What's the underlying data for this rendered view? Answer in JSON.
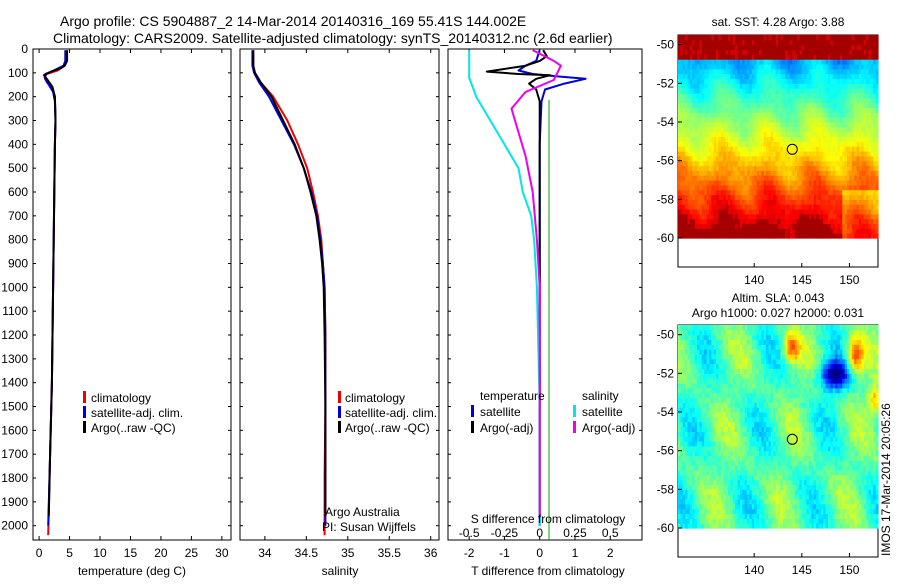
{
  "title": {
    "line1": "Argo profile: CS 5904887_2 14-Mar-2014 20140316_169 55.41S 144.002E",
    "line2": "Climatology: CARS2009. Satellite-adjusted climatology: synTS_20140312.nc (2.6d earlier)"
  },
  "credits": {
    "org": "Argo Australia",
    "pi": "PI: Susan Wijffels"
  },
  "imos_stamp": "IMOS 17-Mar-2014 20:05:26",
  "colors": {
    "climatology": "#ee0000",
    "satellite": "#0000dd",
    "argo": "#000000",
    "salinity_satellite": "#00e5ee",
    "salinity_argo": "#ee00ee",
    "zero_line": "#00aa00"
  },
  "chart_data": [
    {
      "id": "temperature",
      "type": "line",
      "title": "",
      "xlabel": "temperature (deg C)",
      "ylabel": "",
      "xlim": [
        -1,
        31.5
      ],
      "ylim": [
        2060,
        0
      ],
      "xticks": [
        "0",
        "5",
        "10",
        "15",
        "20",
        "25",
        "30"
      ],
      "xtick_values": [
        0,
        5,
        10,
        15,
        20,
        25,
        30
      ],
      "yticks": [
        "0",
        "100",
        "200",
        "300",
        "400",
        "500",
        "600",
        "700",
        "800",
        "900",
        "1000",
        "1100",
        "1200",
        "1300",
        "1400",
        "1500",
        "1600",
        "1700",
        "1800",
        "1900",
        "2000"
      ],
      "ytick_values": [
        0,
        100,
        200,
        300,
        400,
        500,
        600,
        700,
        800,
        900,
        1000,
        1100,
        1200,
        1300,
        1400,
        1500,
        1600,
        1700,
        1800,
        1900,
        2000
      ],
      "legend": [
        "climatology",
        "satellite-adj. clim.",
        "Argo(..raw -QC)"
      ],
      "series": [
        {
          "name": "climatology",
          "color": "#ee0000",
          "points": [
            [
              4.5,
              5
            ],
            [
              4.5,
              50
            ],
            [
              4.2,
              70
            ],
            [
              3.0,
              90
            ],
            [
              1.2,
              105
            ],
            [
              0.9,
              120
            ],
            [
              1.3,
              140
            ],
            [
              2.2,
              165
            ],
            [
              2.6,
              200
            ],
            [
              2.7,
              300
            ],
            [
              2.6,
              400
            ],
            [
              2.5,
              600
            ],
            [
              2.4,
              800
            ],
            [
              2.3,
              1000
            ],
            [
              2.1,
              1400
            ],
            [
              1.8,
              1700
            ],
            [
              1.5,
              2040
            ]
          ]
        },
        {
          "name": "satellite-adj. clim.",
          "color": "#0000dd",
          "points": [
            [
              4.3,
              5
            ],
            [
              4.3,
              50
            ],
            [
              4.0,
              70
            ],
            [
              2.4,
              90
            ],
            [
              1.0,
              105
            ],
            [
              1.0,
              125
            ],
            [
              1.6,
              150
            ],
            [
              2.3,
              180
            ],
            [
              2.6,
              220
            ],
            [
              2.7,
              300
            ],
            [
              2.6,
              400
            ],
            [
              2.5,
              600
            ],
            [
              2.4,
              800
            ],
            [
              2.3,
              1000
            ],
            [
              2.1,
              1400
            ],
            [
              1.8,
              1700
            ],
            [
              1.5,
              2000
            ]
          ]
        },
        {
          "name": "Argo(..raw -QC)",
          "color": "#000000",
          "points": [
            [
              4.6,
              5
            ],
            [
              4.6,
              50
            ],
            [
              4.2,
              70
            ],
            [
              3.6,
              80
            ],
            [
              2.0,
              95
            ],
            [
              0.8,
              110
            ],
            [
              1.4,
              130
            ],
            [
              2.2,
              160
            ],
            [
              2.6,
              200
            ],
            [
              2.7,
              300
            ],
            [
              2.6,
              400
            ],
            [
              2.5,
              600
            ],
            [
              2.4,
              800
            ],
            [
              2.3,
              1000
            ],
            [
              2.1,
              1400
            ],
            [
              1.8,
              1700
            ],
            [
              1.6,
              1960
            ]
          ]
        }
      ]
    },
    {
      "id": "salinity",
      "type": "line",
      "title": "",
      "xlabel": "salinity",
      "ylabel": "",
      "xlim": [
        33.7,
        36.1
      ],
      "ylim": [
        2060,
        0
      ],
      "xticks": [
        "34",
        "34.5",
        "35",
        "35.5",
        "36"
      ],
      "xtick_values": [
        34,
        34.5,
        35,
        35.5,
        36
      ],
      "legend": [
        "climatology",
        "satellite-adj. clim.",
        "Argo(..raw -QC)"
      ],
      "series": [
        {
          "name": "climatology",
          "color": "#ee0000",
          "points": [
            [
              33.86,
              5
            ],
            [
              33.86,
              70
            ],
            [
              33.88,
              100
            ],
            [
              33.95,
              140
            ],
            [
              34.1,
              200
            ],
            [
              34.27,
              300
            ],
            [
              34.4,
              400
            ],
            [
              34.51,
              500
            ],
            [
              34.58,
              600
            ],
            [
              34.64,
              700
            ],
            [
              34.68,
              800
            ],
            [
              34.7,
              900
            ],
            [
              34.72,
              1000
            ],
            [
              34.73,
              1200
            ],
            [
              34.73,
              1500
            ],
            [
              34.72,
              1800
            ],
            [
              34.72,
              2040
            ]
          ]
        },
        {
          "name": "satellite-adj. clim.",
          "color": "#0000dd",
          "points": [
            [
              33.85,
              5
            ],
            [
              33.85,
              70
            ],
            [
              33.87,
              100
            ],
            [
              33.93,
              140
            ],
            [
              34.05,
              200
            ],
            [
              34.2,
              300
            ],
            [
              34.35,
              400
            ],
            [
              34.47,
              500
            ],
            [
              34.56,
              600
            ],
            [
              34.63,
              700
            ],
            [
              34.67,
              800
            ],
            [
              34.7,
              900
            ],
            [
              34.72,
              1000
            ],
            [
              34.73,
              1200
            ],
            [
              34.73,
              1500
            ],
            [
              34.73,
              1800
            ],
            [
              34.73,
              2000
            ]
          ]
        },
        {
          "name": "Argo(..raw -QC)",
          "color": "#000000",
          "points": [
            [
              33.86,
              5
            ],
            [
              33.86,
              70
            ],
            [
              33.88,
              100
            ],
            [
              33.95,
              140
            ],
            [
              34.08,
              200
            ],
            [
              34.22,
              300
            ],
            [
              34.36,
              400
            ],
            [
              34.47,
              500
            ],
            [
              34.55,
              600
            ],
            [
              34.62,
              700
            ],
            [
              34.66,
              800
            ],
            [
              34.69,
              900
            ],
            [
              34.71,
              1000
            ],
            [
              34.72,
              1200
            ],
            [
              34.73,
              1500
            ],
            [
              34.73,
              1800
            ],
            [
              34.73,
              1960
            ]
          ]
        }
      ]
    },
    {
      "id": "difference",
      "type": "line",
      "title": "S difference from climatology",
      "xlabel": "T difference from climatology",
      "ylabel": "",
      "xlim": [
        -2.6,
        2.9
      ],
      "ylim": [
        2060,
        0
      ],
      "xticks": [
        "-2",
        "-1",
        "0",
        "1",
        "2"
      ],
      "xtick_values": [
        -2,
        -1,
        0,
        1,
        2
      ],
      "s_xticks": [
        "-0.5",
        "-0.25",
        "0",
        "0.25",
        "0.5"
      ],
      "s_xtick_values": [
        -0.5,
        -0.25,
        0,
        0.25,
        0.5
      ],
      "legend_temperature": {
        "title": "temperature",
        "items": [
          "satellite",
          "Argo(-adj)"
        ]
      },
      "legend_salinity": {
        "title": "salinity",
        "items": [
          "satellite",
          "Argo(-adj)"
        ]
      },
      "series": [
        {
          "name": "temperature satellite",
          "color": "#0000dd",
          "points": [
            [
              0,
              5
            ],
            [
              -0.1,
              50
            ],
            [
              -0.4,
              70
            ],
            [
              -0.6,
              90
            ],
            [
              -0.2,
              105
            ],
            [
              0.5,
              115
            ],
            [
              1.3,
              125
            ],
            [
              0.7,
              145
            ],
            [
              0.15,
              170
            ],
            [
              0.05,
              220
            ],
            [
              0,
              400
            ],
            [
              0,
              1000
            ],
            [
              0,
              2000
            ]
          ]
        },
        {
          "name": "temperature Argo(-adj)",
          "color": "#000000",
          "points": [
            [
              0.1,
              5
            ],
            [
              0.2,
              30
            ],
            [
              0,
              50
            ],
            [
              -0.4,
              70
            ],
            [
              -1.5,
              95
            ],
            [
              -0.6,
              105
            ],
            [
              0.3,
              110
            ],
            [
              -0.1,
              125
            ],
            [
              -0.3,
              145
            ],
            [
              -0.1,
              170
            ],
            [
              0,
              220
            ],
            [
              0,
              400
            ],
            [
              0,
              1000
            ],
            [
              0,
              1960
            ]
          ]
        },
        {
          "name": "salinity satellite",
          "color": "#00e5ee",
          "points": [
            [
              -0.5,
              5
            ],
            [
              -0.5,
              120
            ],
            [
              -0.45,
              200
            ],
            [
              -0.35,
              300
            ],
            [
              -0.25,
              400
            ],
            [
              -0.15,
              500
            ],
            [
              -0.12,
              600
            ],
            [
              -0.06,
              700
            ],
            [
              -0.04,
              800
            ],
            [
              -0.02,
              1000
            ],
            [
              0,
              1500
            ],
            [
              0,
              2000
            ]
          ]
        },
        {
          "name": "salinity Argo(-adj)",
          "color": "#ee00ee",
          "points": [
            [
              -0.05,
              5
            ],
            [
              0.1,
              50
            ],
            [
              0.15,
              70
            ],
            [
              0.1,
              130
            ],
            [
              -0.1,
              180
            ],
            [
              -0.2,
              250
            ],
            [
              -0.15,
              350
            ],
            [
              -0.1,
              450
            ],
            [
              -0.05,
              600
            ],
            [
              -0.02,
              800
            ],
            [
              0,
              1000
            ],
            [
              0,
              1960
            ]
          ]
        }
      ]
    },
    {
      "id": "sst-map",
      "type": "heatmap",
      "title": "sat. SST: 4.28 Argo: 3.88",
      "xlabel": "",
      "ylabel": "",
      "xlim": [
        132,
        153
      ],
      "ylim": [
        -61.5,
        -49.5
      ],
      "xticks": [
        "140",
        "145",
        "150"
      ],
      "xtick_values": [
        140,
        145,
        150
      ],
      "yticks": [
        "-50",
        "-52",
        "-54",
        "-56",
        "-58",
        "-60"
      ],
      "ytick_values": [
        -50,
        -52,
        -54,
        -56,
        -58,
        -60
      ],
      "data_extent_lat": [
        -60,
        -49.5
      ],
      "marker": {
        "lon": 144.0,
        "lat": -55.41
      }
    },
    {
      "id": "sla-map",
      "type": "heatmap",
      "title": "Altim. SLA: 0.043",
      "subtitle": "Argo h1000: 0.027 h2000: 0.031",
      "xlabel": "",
      "ylabel": "",
      "xlim": [
        132,
        153
      ],
      "ylim": [
        -61.5,
        -49.5
      ],
      "xticks": [
        "140",
        "145",
        "150"
      ],
      "xtick_values": [
        140,
        145,
        150
      ],
      "yticks": [
        "-50",
        "-52",
        "-54",
        "-56",
        "-58",
        "-60"
      ],
      "ytick_values": [
        -50,
        -52,
        -54,
        -56,
        -58,
        -60
      ],
      "data_extent_lat": [
        -60,
        -49.5
      ],
      "marker": {
        "lon": 144.0,
        "lat": -55.41
      }
    }
  ]
}
